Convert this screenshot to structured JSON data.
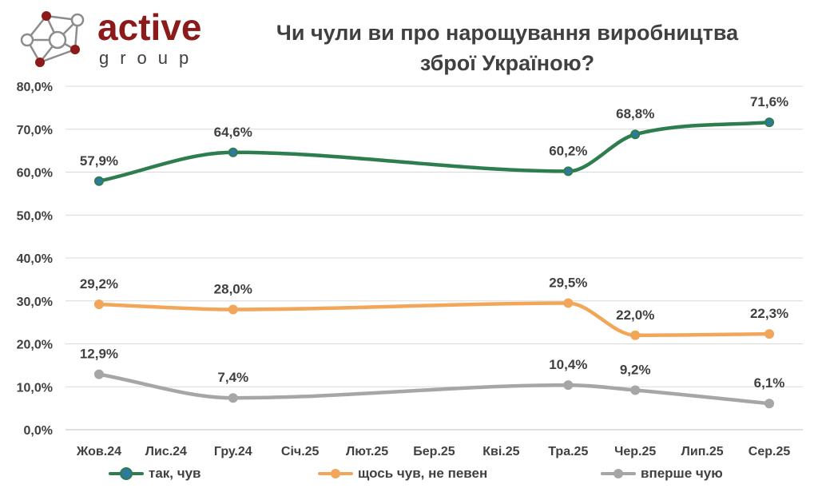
{
  "logo": {
    "word": "active",
    "sub": "group"
  },
  "chart_data": {
    "type": "line",
    "title": "Чи чули ви про нарощування виробництва зброї Україною?",
    "title_lines": [
      "Чи чули ви про нарощування виробництва",
      "зброї Україною?"
    ],
    "categories": [
      "Жов.24",
      "Лис.24",
      "Гру.24",
      "Січ.25",
      "Лют.25",
      "Бер.25",
      "Кві.25",
      "Тра.25",
      "Чер.25",
      "Лип.25",
      "Сер.25"
    ],
    "ylim": [
      0,
      80
    ],
    "yticks": [
      "0,0%",
      "10,0%",
      "20,0%",
      "30,0%",
      "40,0%",
      "50,0%",
      "60,0%",
      "70,0%",
      "80,0%"
    ],
    "grid": true,
    "legend_position": "bottom",
    "series": [
      {
        "name": "так, чув",
        "color": "#2e7d4f",
        "marker_color": "#2d7a9e",
        "points": [
          [
            0,
            57.9
          ],
          [
            2,
            64.6
          ],
          [
            7,
            60.2
          ],
          [
            8,
            68.8
          ],
          [
            10,
            71.6
          ]
        ],
        "labels": [
          "57,9%",
          "64,6%",
          "60,2%",
          "68,8%",
          "71,6%"
        ]
      },
      {
        "name": "щось чув, не певен",
        "color": "#f2a65a",
        "marker_color": "#f2a65a",
        "points": [
          [
            0,
            29.2
          ],
          [
            2,
            28.0
          ],
          [
            7,
            29.5
          ],
          [
            8,
            22.0
          ],
          [
            10,
            22.3
          ]
        ],
        "labels": [
          "29,2%",
          "28,0%",
          "29,5%",
          "22,0%",
          "22,3%"
        ]
      },
      {
        "name": "вперше чую",
        "color": "#a6a6a6",
        "marker_color": "#a6a6a6",
        "points": [
          [
            0,
            12.9
          ],
          [
            2,
            7.4
          ],
          [
            7,
            10.4
          ],
          [
            8,
            9.2
          ],
          [
            10,
            6.1
          ]
        ],
        "labels": [
          "12,9%",
          "7,4%",
          "10,4%",
          "9,2%",
          "6,1%"
        ]
      }
    ]
  }
}
